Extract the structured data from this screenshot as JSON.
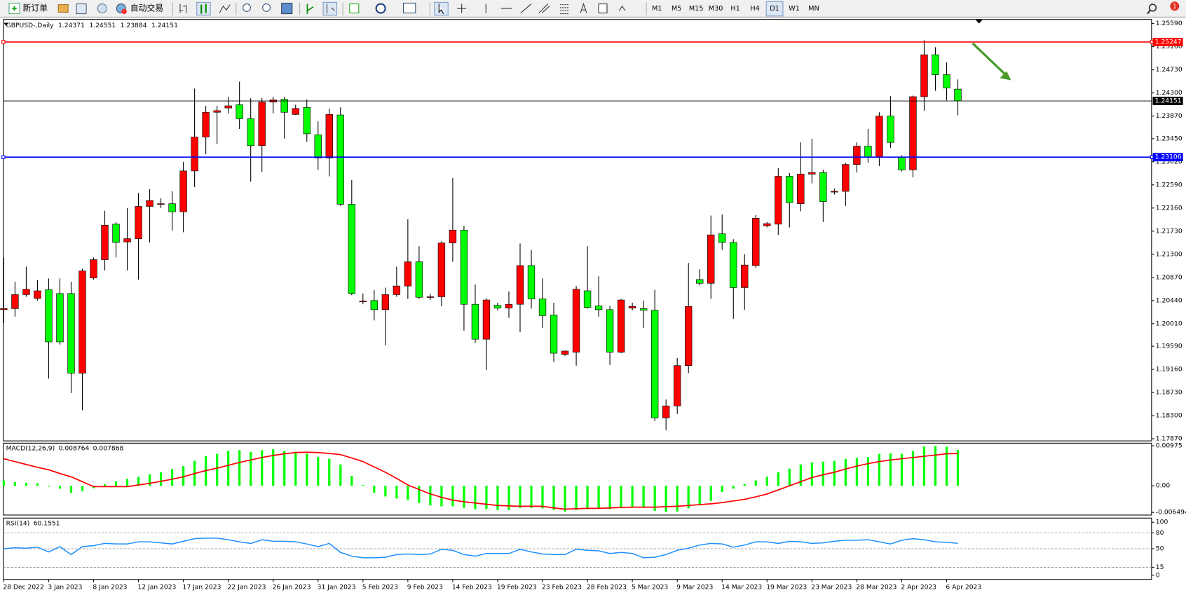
{
  "ui": {
    "new_order": "新订单",
    "auto_trading": "自动交易",
    "timeframes": [
      "M1",
      "M5",
      "M15",
      "M30",
      "H1",
      "H4",
      "D1",
      "W1",
      "MN"
    ],
    "active_timeframe": "D1",
    "notifications": 1
  },
  "chart_data": [
    {
      "type": "candlestick",
      "title": "GBPUSD-,Daily",
      "categories": [
        "28 Dec 2022",
        null,
        null,
        null,
        "3 Jan 2023",
        null,
        null,
        null,
        "8 Jan 2023",
        null,
        null,
        null,
        "12 Jan 2023",
        null,
        null,
        null,
        "17 Jan 2023",
        null,
        null,
        null,
        "22 Jan 2023",
        null,
        null,
        null,
        "26 Jan 2023",
        null,
        null,
        null,
        "31 Jan 2023",
        null,
        null,
        null,
        "5 Feb 2023",
        null,
        null,
        null,
        "9 Feb 2023",
        null,
        null,
        null,
        "14 Feb 2023",
        null,
        null,
        null,
        "19 Feb 2023",
        null,
        null,
        null,
        "23 Feb 2023",
        null,
        null,
        null,
        "28 Feb 2023",
        null,
        null,
        null,
        "5 Mar 2023",
        null,
        null,
        null,
        "9 Mar 2023",
        null,
        null,
        null,
        "14 Mar 2023",
        null,
        null,
        null,
        "19 Mar 2023",
        null,
        null,
        null,
        "23 Mar 2023",
        null,
        null,
        null,
        "28 Mar 2023",
        null,
        null,
        null,
        "2 Apr 2023",
        null,
        null,
        null,
        "6 Apr 2023",
        null
      ],
      "open": [
        1.2027,
        1.2029,
        1.2055,
        1.2048,
        1.2064,
        1.2057,
        1.2057,
        1.1909,
        1.2086,
        1.212,
        1.2186,
        1.2153,
        1.2159,
        1.2219,
        1.2224,
        1.2224,
        1.2209,
        1.2285,
        1.2348,
        1.2394,
        1.2402,
        1.2408,
        1.2382,
        1.2332,
        1.2413,
        1.2418,
        1.239,
        1.2403,
        1.2352,
        1.2309,
        1.2389,
        1.2223,
        1.2043,
        1.2044,
        1.2027,
        1.2055,
        1.2071,
        1.2116,
        1.2051,
        1.2051,
        1.2151,
        1.2175,
        1.2037,
        1.1972,
        1.2035,
        1.203,
        1.2037,
        1.2109,
        1.2047,
        1.2017,
        1.1944,
        1.1948,
        1.2062,
        1.2034,
        1.2027,
        1.1948,
        1.203,
        1.2029,
        1.2026,
        1.1826,
        1.1848,
        1.1923,
        1.2083,
        1.2076,
        1.2168,
        1.2152,
        1.2068,
        1.2109,
        1.2183,
        1.2186,
        1.2275,
        1.2224,
        1.2279,
        1.2282,
        1.2247,
        1.2247,
        1.2297,
        1.2331,
        1.2311,
        1.2387,
        1.2311,
        1.2287,
        1.2423,
        1.2501,
        1.2464,
        1.24371
      ],
      "high": [
        1.2124,
        1.2079,
        1.2107,
        1.2082,
        1.2085,
        1.2085,
        1.2079,
        1.2103,
        1.2124,
        1.2211,
        1.219,
        1.2216,
        1.2244,
        1.2251,
        1.2234,
        1.2247,
        1.2302,
        1.2438,
        1.2406,
        1.2406,
        1.2423,
        1.2451,
        1.242,
        1.2421,
        1.2423,
        1.2423,
        1.2408,
        1.2418,
        1.2377,
        1.2401,
        1.2403,
        1.2268,
        1.2057,
        1.2064,
        1.2068,
        1.2107,
        1.2195,
        1.2145,
        1.2057,
        1.2154,
        1.2272,
        1.2183,
        1.2074,
        1.2048,
        1.204,
        1.2061,
        1.215,
        1.2138,
        1.2085,
        1.204,
        1.1951,
        1.2071,
        1.2145,
        1.2089,
        1.2034,
        1.2047,
        1.204,
        1.2044,
        1.2064,
        1.186,
        1.1937,
        1.2114,
        1.2102,
        1.2202,
        1.2204,
        1.2158,
        1.213,
        1.2203,
        1.219,
        1.229,
        1.2281,
        1.2338,
        1.2345,
        1.2287,
        1.2252,
        1.23,
        1.2338,
        1.2363,
        1.2394,
        1.2424,
        1.2314,
        1.2425,
        1.2528,
        1.2515,
        1.2487,
        1.24551
      ],
      "low": [
        1.2002,
        1.2014,
        1.2051,
        1.2044,
        1.1899,
        1.1962,
        1.1872,
        1.184,
        1.2083,
        1.21,
        1.2124,
        1.21,
        1.2083,
        1.2152,
        1.2216,
        1.2174,
        1.2171,
        1.2255,
        1.2316,
        1.2335,
        1.2392,
        1.2363,
        1.2265,
        1.2283,
        1.2392,
        1.2345,
        1.2389,
        1.2339,
        1.2287,
        1.2275,
        1.222,
        1.2054,
        1.2037,
        1.2007,
        1.1961,
        1.2051,
        1.2047,
        1.2047,
        1.2045,
        1.2033,
        1.2116,
        1.1988,
        1.1965,
        1.1915,
        1.2026,
        1.2012,
        1.1985,
        1.2029,
        1.1993,
        1.193,
        1.1941,
        1.1923,
        1.2029,
        1.2014,
        1.1924,
        1.1946,
        1.2026,
        1.1993,
        1.182,
        1.1803,
        1.1833,
        1.1909,
        1.2072,
        1.2047,
        1.2138,
        1.201,
        1.2027,
        1.2105,
        1.218,
        1.2166,
        1.218,
        1.221,
        1.2262,
        1.219,
        1.2241,
        1.222,
        1.2282,
        1.23,
        1.2294,
        1.2328,
        1.2284,
        1.2273,
        1.2397,
        1.2434,
        1.2416,
        1.23884
      ],
      "close": [
        1.2029,
        1.2055,
        1.2065,
        1.2062,
        1.1967,
        1.1967,
        1.1909,
        1.2099,
        1.212,
        1.2184,
        1.2152,
        1.2159,
        1.2219,
        1.223,
        1.2224,
        1.2209,
        1.2285,
        1.2348,
        1.2394,
        1.2397,
        1.2406,
        1.2382,
        1.2332,
        1.2413,
        1.2417,
        1.2394,
        1.2401,
        1.2354,
        1.2309,
        1.239,
        1.2223,
        1.2057,
        1.2043,
        1.2027,
        1.2055,
        1.2071,
        1.2116,
        1.205,
        1.2051,
        1.2151,
        1.2175,
        1.2037,
        1.1972,
        1.2045,
        1.203,
        1.2037,
        1.2109,
        1.2047,
        1.2016,
        1.1946,
        1.195,
        1.2065,
        1.2031,
        1.2027,
        1.1948,
        1.2045,
        1.2033,
        1.2026,
        1.1826,
        1.1848,
        1.1923,
        1.2033,
        1.2076,
        1.2166,
        1.2152,
        1.2068,
        1.211,
        1.2197,
        1.2187,
        1.2275,
        1.2226,
        1.2279,
        1.2282,
        1.2228,
        1.2247,
        1.2297,
        1.2331,
        1.2311,
        1.2387,
        1.2338,
        1.2287,
        1.2423,
        1.2501,
        1.2464,
        1.2439,
        1.24151
      ],
      "up_color": "#ff0000",
      "down_color": "#00ff00",
      "bid_color": "#000000",
      "levels": [
        {
          "value": 1.25247,
          "color": "#ff0000"
        },
        {
          "value": 1.23106,
          "color": "#0000ff"
        }
      ],
      "ylim": [
        1.17823,
        1.25674
      ],
      "yticks": [
        {
          "value": 1.2559,
          "label": "1.25590"
        },
        {
          "value": 1.2516,
          "label": "1.25160"
        },
        {
          "value": 1.2473,
          "label": "1.24730"
        },
        {
          "value": 1.243,
          "label": "1.24300"
        },
        {
          "value": 1.2387,
          "label": "1.23870"
        },
        {
          "value": 1.2345,
          "label": "1.23450"
        },
        {
          "value": 1.2302,
          "label": "1.23020"
        },
        {
          "value": 1.2259,
          "label": "1.22590"
        },
        {
          "value": 1.2216,
          "label": "1.22160"
        },
        {
          "value": 1.2173,
          "label": "1.21730"
        },
        {
          "value": 1.213,
          "label": "1.21300"
        },
        {
          "value": 1.2087,
          "label": "1.20870"
        },
        {
          "value": 1.2044,
          "label": "1.20440"
        },
        {
          "value": 1.2001,
          "label": "1.20010"
        },
        {
          "value": 1.1959,
          "label": "1.19590"
        },
        {
          "value": 1.1916,
          "label": "1.19160"
        },
        {
          "value": 1.1873,
          "label": "1.18730"
        },
        {
          "value": 1.183,
          "label": "1.18300"
        },
        {
          "value": 1.1787,
          "label": "1.17870"
        }
      ]
    },
    {
      "type": "macd",
      "title": "MACD(12,26,9)",
      "histogram": {
        "color": "#00ff00",
        "values": [
          0.0013,
          0.0009,
          0.0007,
          0.0006,
          -0.0002,
          -0.0007,
          -0.0017,
          -0.0013,
          -0.0006,
          0.0004,
          0.0011,
          0.0017,
          0.0022,
          0.0028,
          0.0033,
          0.0041,
          0.0048,
          0.0061,
          0.0072,
          0.0078,
          0.0085,
          0.0087,
          0.0083,
          0.0087,
          0.0089,
          0.0085,
          0.0083,
          0.0078,
          0.007,
          0.0066,
          0.0052,
          0.0024,
          0.0002,
          -0.0017,
          -0.0026,
          -0.0031,
          -0.0035,
          -0.0042,
          -0.0048,
          -0.005,
          -0.005,
          -0.0054,
          -0.0057,
          -0.0057,
          -0.0059,
          -0.0059,
          -0.0054,
          -0.0054,
          -0.0055,
          -0.0059,
          -0.0063,
          -0.0059,
          -0.0057,
          -0.0055,
          -0.0057,
          -0.0054,
          -0.0052,
          -0.0054,
          -0.0061,
          -0.0064,
          -0.0063,
          -0.0055,
          -0.0048,
          -0.0037,
          -0.0015,
          -0.0007,
          0.0004,
          0.0013,
          0.0022,
          0.0033,
          0.0042,
          0.0052,
          0.0057,
          0.0059,
          0.0061,
          0.0065,
          0.0068,
          0.007,
          0.0078,
          0.0079,
          0.0078,
          0.0085,
          0.0096,
          0.0097,
          0.0095,
          0.008764
        ]
      },
      "signal": {
        "color": "#ff0000",
        "values": [
          0.0066,
          0.0059,
          0.0052,
          0.0045,
          0.0039,
          0.003,
          0.0022,
          0.001,
          -0.0002,
          -0.0002,
          -0.0002,
          -0.0002,
          0.0002,
          0.0006,
          0.0011,
          0.0016,
          0.0022,
          0.003,
          0.0037,
          0.0043,
          0.005,
          0.0057,
          0.0063,
          0.0069,
          0.0074,
          0.0078,
          0.0081,
          0.0082,
          0.0081,
          0.0079,
          0.0076,
          0.0068,
          0.0059,
          0.0046,
          0.0033,
          0.0018,
          0.0002,
          -0.0009,
          -0.002,
          -0.0028,
          -0.0035,
          -0.0039,
          -0.0042,
          -0.0045,
          -0.0048,
          -0.0049,
          -0.005,
          -0.005,
          -0.005,
          -0.0054,
          -0.0057,
          -0.0056,
          -0.0055,
          -0.0055,
          -0.0054,
          -0.0053,
          -0.0052,
          -0.0052,
          -0.0052,
          -0.0051,
          -0.005,
          -0.0048,
          -0.0046,
          -0.0044,
          -0.0041,
          -0.0037,
          -0.0033,
          -0.0027,
          -0.002,
          -0.001,
          0,
          0.001,
          0.002,
          0.0027,
          0.0033,
          0.0041,
          0.0048,
          0.0054,
          0.0059,
          0.0063,
          0.0066,
          0.0069,
          0.0072,
          0.0075,
          0.0078,
          0.007868
        ]
      },
      "ylim": [
        -0.006494,
        0.00975
      ],
      "yticks": [
        0.00975,
        {
          "value": 0,
          "label": "0.00"
        },
        -0.006494
      ]
    },
    {
      "type": "rsi",
      "title": "RSI(14)",
      "color": "#1e90ff",
      "values": [
        50,
        52,
        51,
        53,
        44,
        54,
        39,
        54,
        56,
        60,
        59,
        59,
        63,
        63,
        61,
        59,
        64,
        69,
        70,
        70,
        67,
        63,
        60,
        67,
        64,
        64,
        63,
        59,
        54,
        60,
        43,
        36,
        33,
        33,
        34,
        39,
        40,
        39,
        40,
        49,
        47,
        39,
        36,
        41,
        41,
        41,
        49,
        44,
        40,
        39,
        39,
        49,
        47,
        46,
        41,
        43,
        41,
        33,
        34,
        39,
        47,
        51,
        57,
        60,
        59,
        53,
        57,
        63,
        63,
        60,
        64,
        63,
        60,
        61,
        64,
        66,
        66,
        67,
        63,
        59,
        66,
        69,
        67,
        63,
        62,
        60.1551
      ],
      "ylim": [
        0,
        100
      ],
      "yticks": [
        100,
        80,
        50,
        15,
        0
      ]
    }
  ]
}
